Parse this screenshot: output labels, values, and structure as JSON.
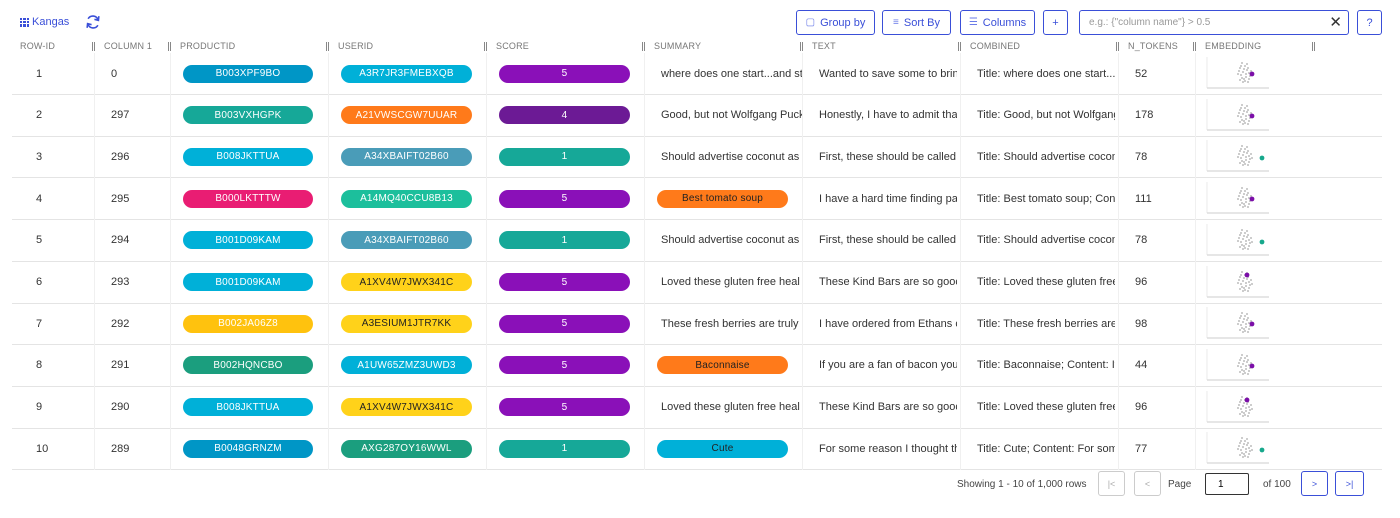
{
  "app": {
    "name": "Kangas"
  },
  "toolbar": {
    "group_by": "Group by",
    "sort_by": "Sort By",
    "columns": "Columns",
    "add": "+",
    "help": "?",
    "filter_placeholder": "e.g.: {\"column name\"} > 0.5",
    "filter_value": ""
  },
  "columns": [
    "ROW-ID",
    "COLUMN 1",
    "PRODUCTID",
    "USERID",
    "SCORE",
    "SUMMARY",
    "TEXT",
    "COMBINED",
    "N_TOKENS",
    "EMBEDDING"
  ],
  "colors": {
    "accent": "#3a4fd8",
    "pill_blue": "#00b0d8",
    "pill_darkblue": "#0096c6",
    "pill_teal": "#16a898",
    "pill_purple": "#8a10b8",
    "pill_darkpurple": "#6c1a95",
    "pill_orange": "#ff7a1a",
    "pill_magenta": "#e91d73",
    "pill_yellow": "#ffc60d",
    "pill_steel": "#4a9cb8",
    "pill_green": "#1cbf9c",
    "pill_darkteal": "#1b9e7e",
    "pill_gold": "#ffc20e",
    "dot_purple": "#7b0ea8",
    "dot_teal": "#17a88c"
  },
  "rows": [
    {
      "row_id": "1",
      "col1": "0",
      "product": "B003XPF9BO",
      "product_color": "#0096c6",
      "user": "A3R7JR3FMEBXQB",
      "user_color": "#00b0d8",
      "user_dark": false,
      "score": "5",
      "score_color": "#8a10b8",
      "summary": "where does one start...and st",
      "summary_pill": false,
      "summary_color": "",
      "text": "Wanted to save some to brin",
      "combined": "Title: where does one start...a",
      "n_tokens": "52",
      "dot": "#7b0ea8",
      "dot_side": "center"
    },
    {
      "row_id": "2",
      "col1": "297",
      "product": "B003VXHGPK",
      "product_color": "#16a898",
      "user": "A21VWSCGW7UUAR",
      "user_color": "#ff7a1a",
      "user_dark": false,
      "score": "4",
      "score_color": "#6c1a95",
      "summary": "Good, but not Wolfgang Puck",
      "summary_pill": false,
      "summary_color": "",
      "text": "Honestly, I have to admit tha",
      "combined": "Title: Good, but not Wolfgang",
      "n_tokens": "178",
      "dot": "#7b0ea8",
      "dot_side": "center"
    },
    {
      "row_id": "3",
      "col1": "296",
      "product": "B008JKTTUA",
      "product_color": "#00b0d8",
      "user": "A34XBAIFT02B60",
      "user_color": "#4a9cb8",
      "user_dark": false,
      "score": "1",
      "score_color": "#16a898",
      "summary": "Should advertise coconut as",
      "summary_pill": false,
      "summary_color": "",
      "text": "First, these should be called",
      "combined": "Title: Should advertise cocon",
      "n_tokens": "78",
      "dot": "#17a88c",
      "dot_side": "right"
    },
    {
      "row_id": "4",
      "col1": "295",
      "product": "B000LKTTTW",
      "product_color": "#e91d73",
      "user": "A14MQ40CCU8B13",
      "user_color": "#1cbf9c",
      "user_dark": false,
      "score": "5",
      "score_color": "#8a10b8",
      "summary": "Best tomato soup",
      "summary_pill": true,
      "summary_color": "#ff7a1a",
      "text": "I have a hard time finding pa",
      "combined": "Title: Best tomato soup; Con",
      "n_tokens": "111",
      "dot": "#7b0ea8",
      "dot_side": "center"
    },
    {
      "row_id": "5",
      "col1": "294",
      "product": "B001D09KAM",
      "product_color": "#00b0d8",
      "user": "A34XBAIFT02B60",
      "user_color": "#4a9cb8",
      "user_dark": false,
      "score": "1",
      "score_color": "#16a898",
      "summary": "Should advertise coconut as",
      "summary_pill": false,
      "summary_color": "",
      "text": "First, these should be called",
      "combined": "Title: Should advertise cocon",
      "n_tokens": "78",
      "dot": "#17a88c",
      "dot_side": "right"
    },
    {
      "row_id": "6",
      "col1": "293",
      "product": "B001D09KAM",
      "product_color": "#00b0d8",
      "user": "A1XV4W7JWX341C",
      "user_color": "#ffd21a",
      "user_dark": true,
      "score": "5",
      "score_color": "#8a10b8",
      "summary": "Loved these gluten free heal",
      "summary_pill": false,
      "summary_color": "",
      "text": "These Kind Bars are so gooc",
      "combined": "Title: Loved these gluten free",
      "n_tokens": "96",
      "dot": "#7b0ea8",
      "dot_side": "top"
    },
    {
      "row_id": "7",
      "col1": "292",
      "product": "B002JA06Z8",
      "product_color": "#ffc20e",
      "user": "A3ESIUM1JTR7KK",
      "user_color": "#ffd21a",
      "user_dark": true,
      "score": "5",
      "score_color": "#8a10b8",
      "summary": "These fresh berries are truly",
      "summary_pill": false,
      "summary_color": "",
      "text": "I have ordered from Ethans c",
      "combined": "Title: These fresh berries are",
      "n_tokens": "98",
      "dot": "#7b0ea8",
      "dot_side": "center"
    },
    {
      "row_id": "8",
      "col1": "291",
      "product": "B002HQNCBO",
      "product_color": "#1b9e7e",
      "user": "A1UW65ZMZ3UWD3",
      "user_color": "#00b0d8",
      "user_dark": false,
      "score": "5",
      "score_color": "#8a10b8",
      "summary": "Baconnaise",
      "summary_pill": true,
      "summary_color": "#ff7a1a",
      "text": "If you are a fan of bacon you",
      "combined": "Title: Baconnaise; Content: If",
      "n_tokens": "44",
      "dot": "#7b0ea8",
      "dot_side": "center"
    },
    {
      "row_id": "9",
      "col1": "290",
      "product": "B008JKTTUA",
      "product_color": "#00b0d8",
      "user": "A1XV4W7JWX341C",
      "user_color": "#ffd21a",
      "user_dark": true,
      "score": "5",
      "score_color": "#8a10b8",
      "summary": "Loved these gluten free heal",
      "summary_pill": false,
      "summary_color": "",
      "text": "These Kind Bars are so gooc",
      "combined": "Title: Loved these gluten free",
      "n_tokens": "96",
      "dot": "#7b0ea8",
      "dot_side": "top"
    },
    {
      "row_id": "10",
      "col1": "289",
      "product": "B0048GRNZM",
      "product_color": "#0096c6",
      "user": "AXG287OY16WWL",
      "user_color": "#1b9e7e",
      "user_dark": false,
      "score": "1",
      "score_color": "#16a898",
      "summary": "Cute",
      "summary_pill": true,
      "summary_color": "#00b0d8",
      "text": "For some reason I thought th",
      "combined": "Title: Cute; Content: For som",
      "n_tokens": "77",
      "dot": "#17a88c",
      "dot_side": "right"
    }
  ],
  "pagination": {
    "showing": "Showing 1 - 10 of 1,000 rows",
    "page_label": "Page",
    "page_value": "1",
    "of_label": "of 100",
    "first": "|<",
    "prev": "<",
    "next": ">",
    "last": ">|"
  }
}
